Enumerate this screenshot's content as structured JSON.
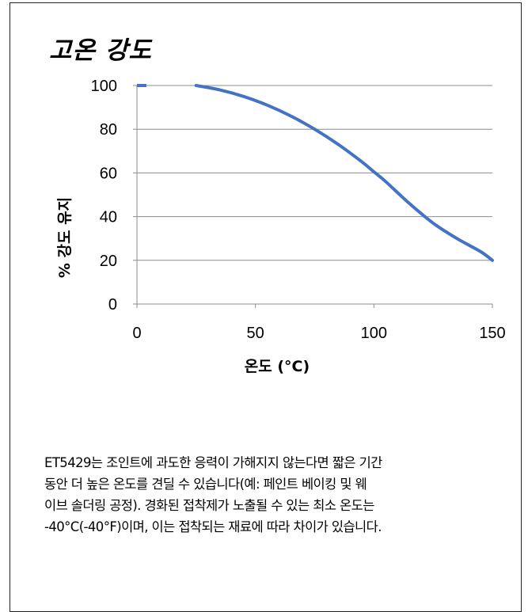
{
  "chart_data": {
    "type": "line",
    "title": "고온 강도",
    "xlabel": "온도 (°C)",
    "ylabel": "% 강도 유지",
    "xlim": [
      0,
      150
    ],
    "ylim": [
      0,
      100
    ],
    "x_ticks": [
      "0",
      "50",
      "100",
      "150"
    ],
    "y_ticks": [
      "0",
      "20",
      "40",
      "60",
      "80",
      "100"
    ],
    "grid": "horizontal",
    "line_color": "#4472c4",
    "series": [
      {
        "x": [
          25,
          35,
          45,
          55,
          65,
          75,
          85,
          95,
          100,
          105,
          115,
          125,
          135,
          145,
          150
        ],
        "values": [
          100,
          98,
          95,
          91,
          86,
          80,
          73,
          65,
          60.5,
          56,
          46,
          37,
          30,
          24,
          20
        ]
      }
    ],
    "marker_at_zero": {
      "x": 0,
      "y": 100
    }
  },
  "note": "ET5429는 조인트에 과도한 응력이 가해지지 않는다면 짧은 기간\n동안 더 높은 온도를 견딜 수 있습니다(예: 페인트 베이킹 및 웨\n이브 솔더링 공정). 경화된 접착제가 노출될 수 있는 최소 온도는\n-40°C(-40°F)이며, 이는 접착되는 재료에 따라 차이가 있습니다."
}
